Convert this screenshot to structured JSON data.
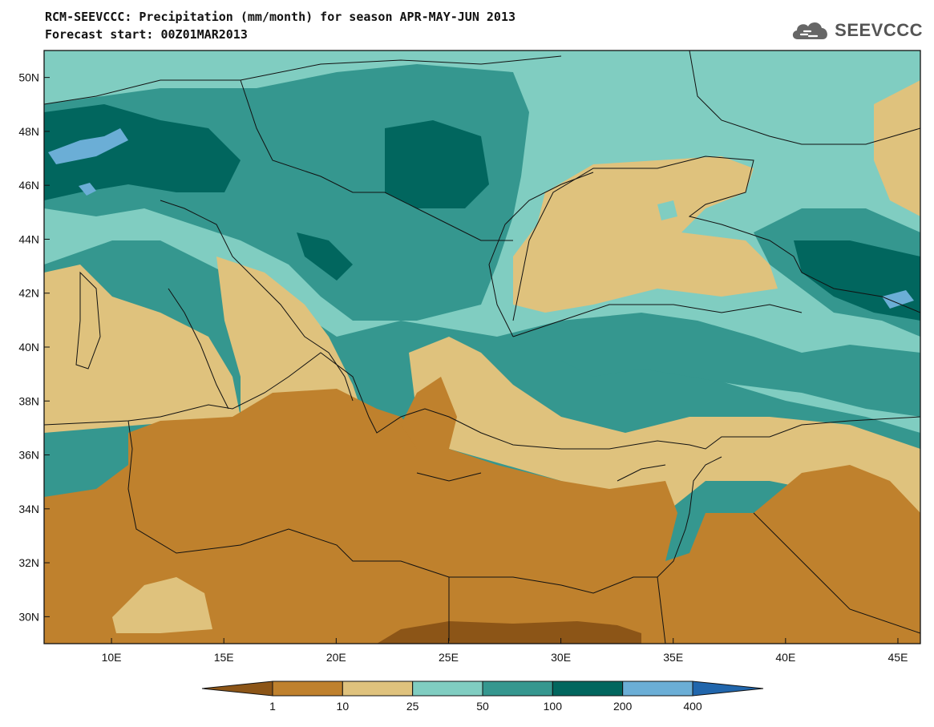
{
  "title": {
    "line1": "RCM-SEEVCCC: Precipitation (mm/month) for season APR-MAY-JUN 2013",
    "line2": "Forecast start: 00Z01MAR2013"
  },
  "logo": {
    "text": "SEEVCCC",
    "icon": "cloud-icon"
  },
  "map": {
    "lon_range": [
      7,
      46
    ],
    "lat_range": [
      29,
      51
    ],
    "lon_ticks": [
      {
        "value": 10,
        "label": "10E"
      },
      {
        "value": 15,
        "label": "15E"
      },
      {
        "value": 20,
        "label": "20E"
      },
      {
        "value": 25,
        "label": "25E"
      },
      {
        "value": 30,
        "label": "30E"
      },
      {
        "value": 35,
        "label": "35E"
      },
      {
        "value": 40,
        "label": "40E"
      },
      {
        "value": 45,
        "label": "45E"
      }
    ],
    "lat_ticks": [
      {
        "value": 30,
        "label": "30N"
      },
      {
        "value": 32,
        "label": "32N"
      },
      {
        "value": 34,
        "label": "34N"
      },
      {
        "value": 36,
        "label": "36N"
      },
      {
        "value": 38,
        "label": "38N"
      },
      {
        "value": 40,
        "label": "40N"
      },
      {
        "value": 42,
        "label": "42N"
      },
      {
        "value": 44,
        "label": "44N"
      },
      {
        "value": 46,
        "label": "46N"
      },
      {
        "value": 48,
        "label": "48N"
      },
      {
        "value": 50,
        "label": "50N"
      }
    ]
  },
  "legend": {
    "colors": [
      "#8c5517",
      "#bf812d",
      "#dfc27d",
      "#80cdc1",
      "#35978f",
      "#01665e",
      "#6baed6",
      "#2166ac"
    ],
    "labels": [
      "1",
      "10",
      "25",
      "50",
      "100",
      "200",
      "400"
    ]
  }
}
